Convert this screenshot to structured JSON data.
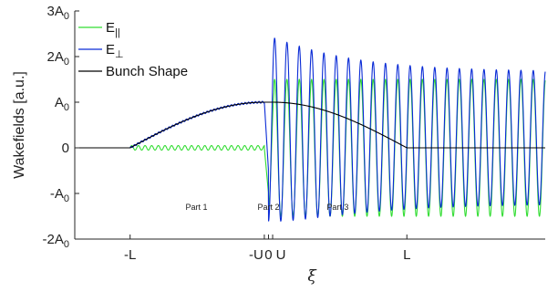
{
  "chart_data": {
    "type": "line",
    "xlabel": "ξ",
    "ylabel": "Wakefields [a.u.]",
    "x_ticks": [
      {
        "x": -1.0,
        "label": "-L"
      },
      {
        "x": -0.03,
        "label": "-U"
      },
      {
        "x": 0.0,
        "label": "0"
      },
      {
        "x": 0.03,
        "label": "U"
      },
      {
        "x": 1.0,
        "label": "L"
      }
    ],
    "xlim": [
      -1.4,
      2.0
    ],
    "ylim": [
      -2,
      3
    ],
    "y_ticks": [
      {
        "y": 3,
        "label": "3A",
        "sub": "0"
      },
      {
        "y": 2,
        "label": "2A",
        "sub": "0"
      },
      {
        "y": 1,
        "label": "A",
        "sub": "0"
      },
      {
        "y": 0,
        "label": "0",
        "sub": ""
      },
      {
        "y": -1,
        "label": "-A",
        "sub": "0"
      },
      {
        "y": -2,
        "label": "-2A",
        "sub": "0"
      }
    ],
    "annotations": [
      {
        "text": "Part 1",
        "x": -0.52,
        "y": -1.3
      },
      {
        "text": "Part 2",
        "x": 0.0,
        "y": -1.3
      },
      {
        "text": "Part 3",
        "x": 0.5,
        "y": -1.3
      }
    ],
    "legend": {
      "position": "top-left",
      "entries": [
        {
          "label": "E",
          "sub": "||",
          "color": "#33dd33"
        },
        {
          "label": "E",
          "sub": "⊥",
          "color": "#0a2bd6"
        },
        {
          "label": "Bunch Shape",
          "sub": "",
          "color": "#000000"
        }
      ]
    },
    "series": [
      {
        "name": "E||",
        "color": "#33dd33",
        "description_points": [
          {
            "x": -1.4,
            "y": 0
          },
          {
            "x": -1.0,
            "y": 0
          },
          {
            "x": -0.5,
            "y": 0.05
          },
          {
            "x": -0.03,
            "y": 0.0
          },
          {
            "x": 0.1,
            "y": 1.45
          },
          {
            "x": 0.2,
            "y": -1.55
          },
          {
            "x": 1.0,
            "y": 1.5
          },
          {
            "x": 2.0,
            "y": -1.4
          }
        ],
        "oscillation": {
          "before_U_amplitude": 0.05,
          "after_U_amplitude": 1.5,
          "period_after_U": 0.089
        }
      },
      {
        "name": "E⊥",
        "color": "#0a2bd6",
        "description_points": [
          {
            "x": -1.0,
            "y": 0
          },
          {
            "x": -0.5,
            "y": 0.75
          },
          {
            "x": -0.03,
            "y": 1.0
          },
          {
            "x": 0.0,
            "y": 0.0
          },
          {
            "x": 0.07,
            "y": 2.45
          },
          {
            "x": 1.0,
            "y": 1.45
          },
          {
            "x": 2.0,
            "y": 1.4
          }
        ],
        "oscillation": {
          "peak_after_U": 2.45,
          "settled_amplitude": 1.45,
          "trough_min": -1.0
        }
      },
      {
        "name": "Bunch Shape",
        "color": "#000000",
        "description_points": [
          {
            "x": -1.4,
            "y": 0
          },
          {
            "x": -1.0,
            "y": 0
          },
          {
            "x": -0.5,
            "y": 0.75
          },
          {
            "x": -0.03,
            "y": 1.0
          },
          {
            "x": 0.03,
            "y": 1.0
          },
          {
            "x": 0.5,
            "y": 0.75
          },
          {
            "x": 1.0,
            "y": 0
          },
          {
            "x": 2.0,
            "y": 0
          }
        ]
      }
    ]
  }
}
